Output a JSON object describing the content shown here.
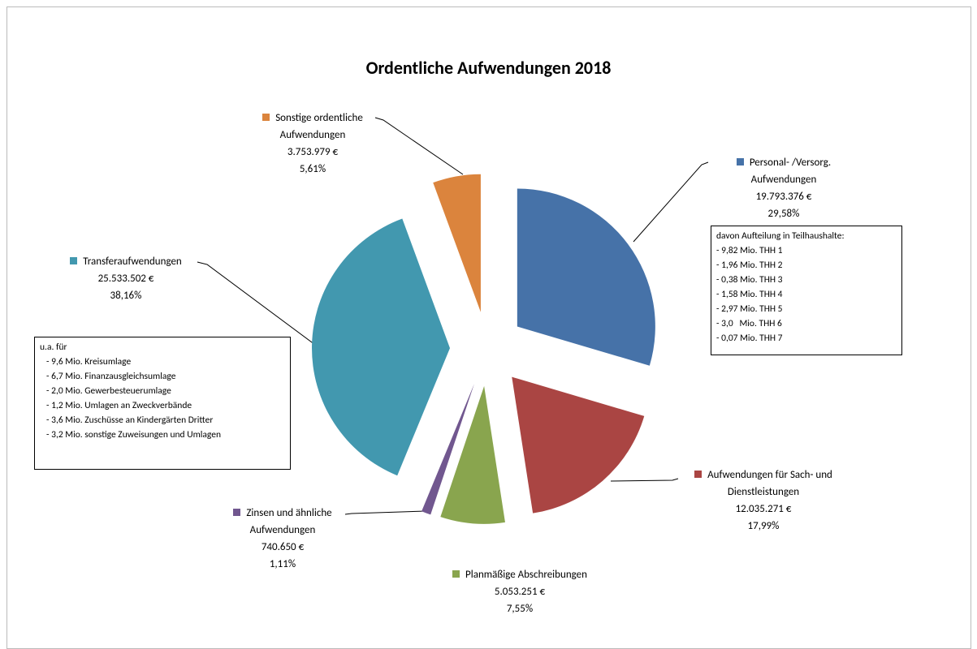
{
  "chart_data": {
    "type": "pie",
    "title": "Ordentliche Aufwendungen 2018",
    "categories": [
      "Personal- /Versorg. Aufwendungen",
      "Aufwendungen für Sach- und Dienstleistungen",
      "Planmäßige Abschreibungen",
      "Zinsen und ähnliche Aufwendungen",
      "Transferaufwendungen",
      "Sonstige ordentliche Aufwendungen"
    ],
    "values": [
      19793376,
      12035271,
      5053251,
      740650,
      25533502,
      3753979
    ],
    "value_labels": [
      "19.793.376 €",
      "12.035.271 €",
      "5.053.251 €",
      "740.650 €",
      "25.533.502 €",
      "3.753.979 €"
    ],
    "percentages": [
      29.58,
      17.99,
      7.55,
      1.11,
      38.16,
      5.61
    ],
    "percentage_labels": [
      "29,58%",
      "17,99%",
      "7,55%",
      "1,11%",
      "38,16%",
      "5,61%"
    ],
    "colors": [
      "#4672a8",
      "#aa4543",
      "#89a54e",
      "#71578f",
      "#4298af",
      "#db843d"
    ],
    "annotations": [
      {
        "title": "davon Aufteilung in Teilhaushalte:",
        "items": [
          "- 9,82 Mio. THH 1",
          "- 1,96 Mio. THH 2",
          "- 0,38 Mio. THH 3",
          "- 1,58 Mio. THH 4",
          "- 2,97 Mio. THH 5",
          "- 3,0   Mio. THH 6",
          "- 0,07 Mio. THH 7"
        ]
      },
      {
        "title": "u.a. für",
        "items": [
          "- 9,6 Mio. Kreisumlage",
          "- 6,7 Mio. Finanzausgleichsumlage",
          "- 2,0 Mio. Gewerbesteuerumlage",
          "- 1,2 Mio. Umlagen an Zweckverbände",
          "- 3,6 Mio. Zuschüsse an Kindergärten Dritter",
          "- 3,2 Mio. sonstige Zuweisungen und Umlagen"
        ]
      }
    ]
  }
}
